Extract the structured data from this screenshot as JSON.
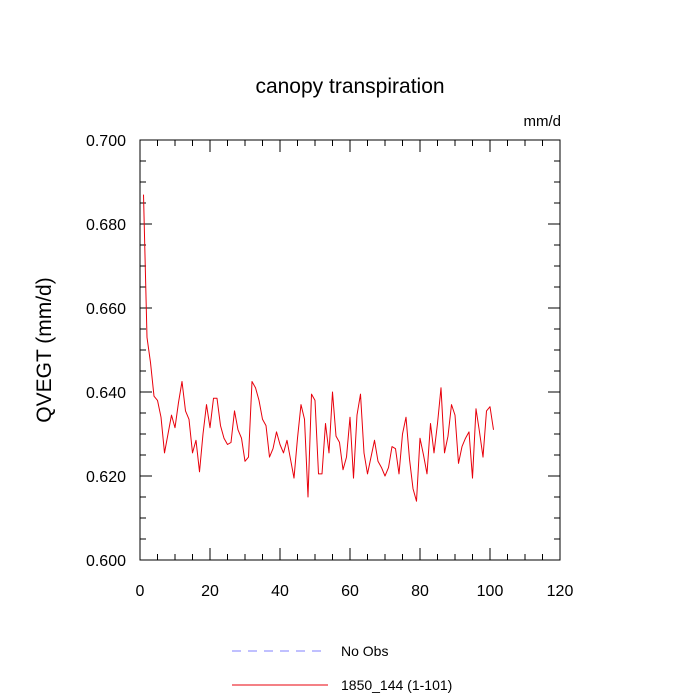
{
  "chart_data": {
    "type": "line",
    "title": "canopy transpiration",
    "units": "mm/d",
    "ylabel": "QVEGT  (mm/d)",
    "xlabel": "",
    "xlim": [
      0,
      120
    ],
    "ylim": [
      0.6,
      0.7
    ],
    "x_ticks": [
      "0",
      "20",
      "40",
      "60",
      "80",
      "100",
      "120"
    ],
    "y_ticks": [
      "0.600",
      "0.620",
      "0.640",
      "0.660",
      "0.680",
      "0.700"
    ],
    "legend_position": "bottom",
    "legend": [
      {
        "label": "No Obs",
        "color": "#8080ff",
        "dash": true
      },
      {
        "label": "1850_144 (1-101)",
        "color": "#e8000b",
        "dash": false
      }
    ],
    "series": [
      {
        "name": "1850_144 (1-101)",
        "color": "#e8000b",
        "x_start": 1,
        "values": [
          0.687,
          0.653,
          0.647,
          0.639,
          0.638,
          0.634,
          0.6255,
          0.63,
          0.6345,
          0.6315,
          0.6375,
          0.6425,
          0.6355,
          0.6335,
          0.6255,
          0.6285,
          0.621,
          0.63,
          0.637,
          0.6315,
          0.6385,
          0.6385,
          0.632,
          0.629,
          0.6275,
          0.628,
          0.6355,
          0.631,
          0.629,
          0.6235,
          0.6245,
          0.6425,
          0.641,
          0.638,
          0.6335,
          0.632,
          0.6245,
          0.6265,
          0.6305,
          0.6275,
          0.6255,
          0.6285,
          0.624,
          0.6195,
          0.629,
          0.637,
          0.6335,
          0.615,
          0.6395,
          0.638,
          0.6205,
          0.6205,
          0.6325,
          0.6255,
          0.64,
          0.6295,
          0.628,
          0.6215,
          0.6245,
          0.634,
          0.6195,
          0.6345,
          0.6395,
          0.6255,
          0.6205,
          0.6245,
          0.6285,
          0.6235,
          0.622,
          0.62,
          0.622,
          0.627,
          0.6265,
          0.6205,
          0.63,
          0.634,
          0.624,
          0.617,
          0.614,
          0.629,
          0.625,
          0.6205,
          0.6325,
          0.6255,
          0.6325,
          0.641,
          0.6255,
          0.6295,
          0.637,
          0.6345,
          0.623,
          0.627,
          0.629,
          0.6305,
          0.6195,
          0.636,
          0.6305,
          0.6245,
          0.6355,
          0.6365,
          0.631
        ]
      }
    ]
  }
}
